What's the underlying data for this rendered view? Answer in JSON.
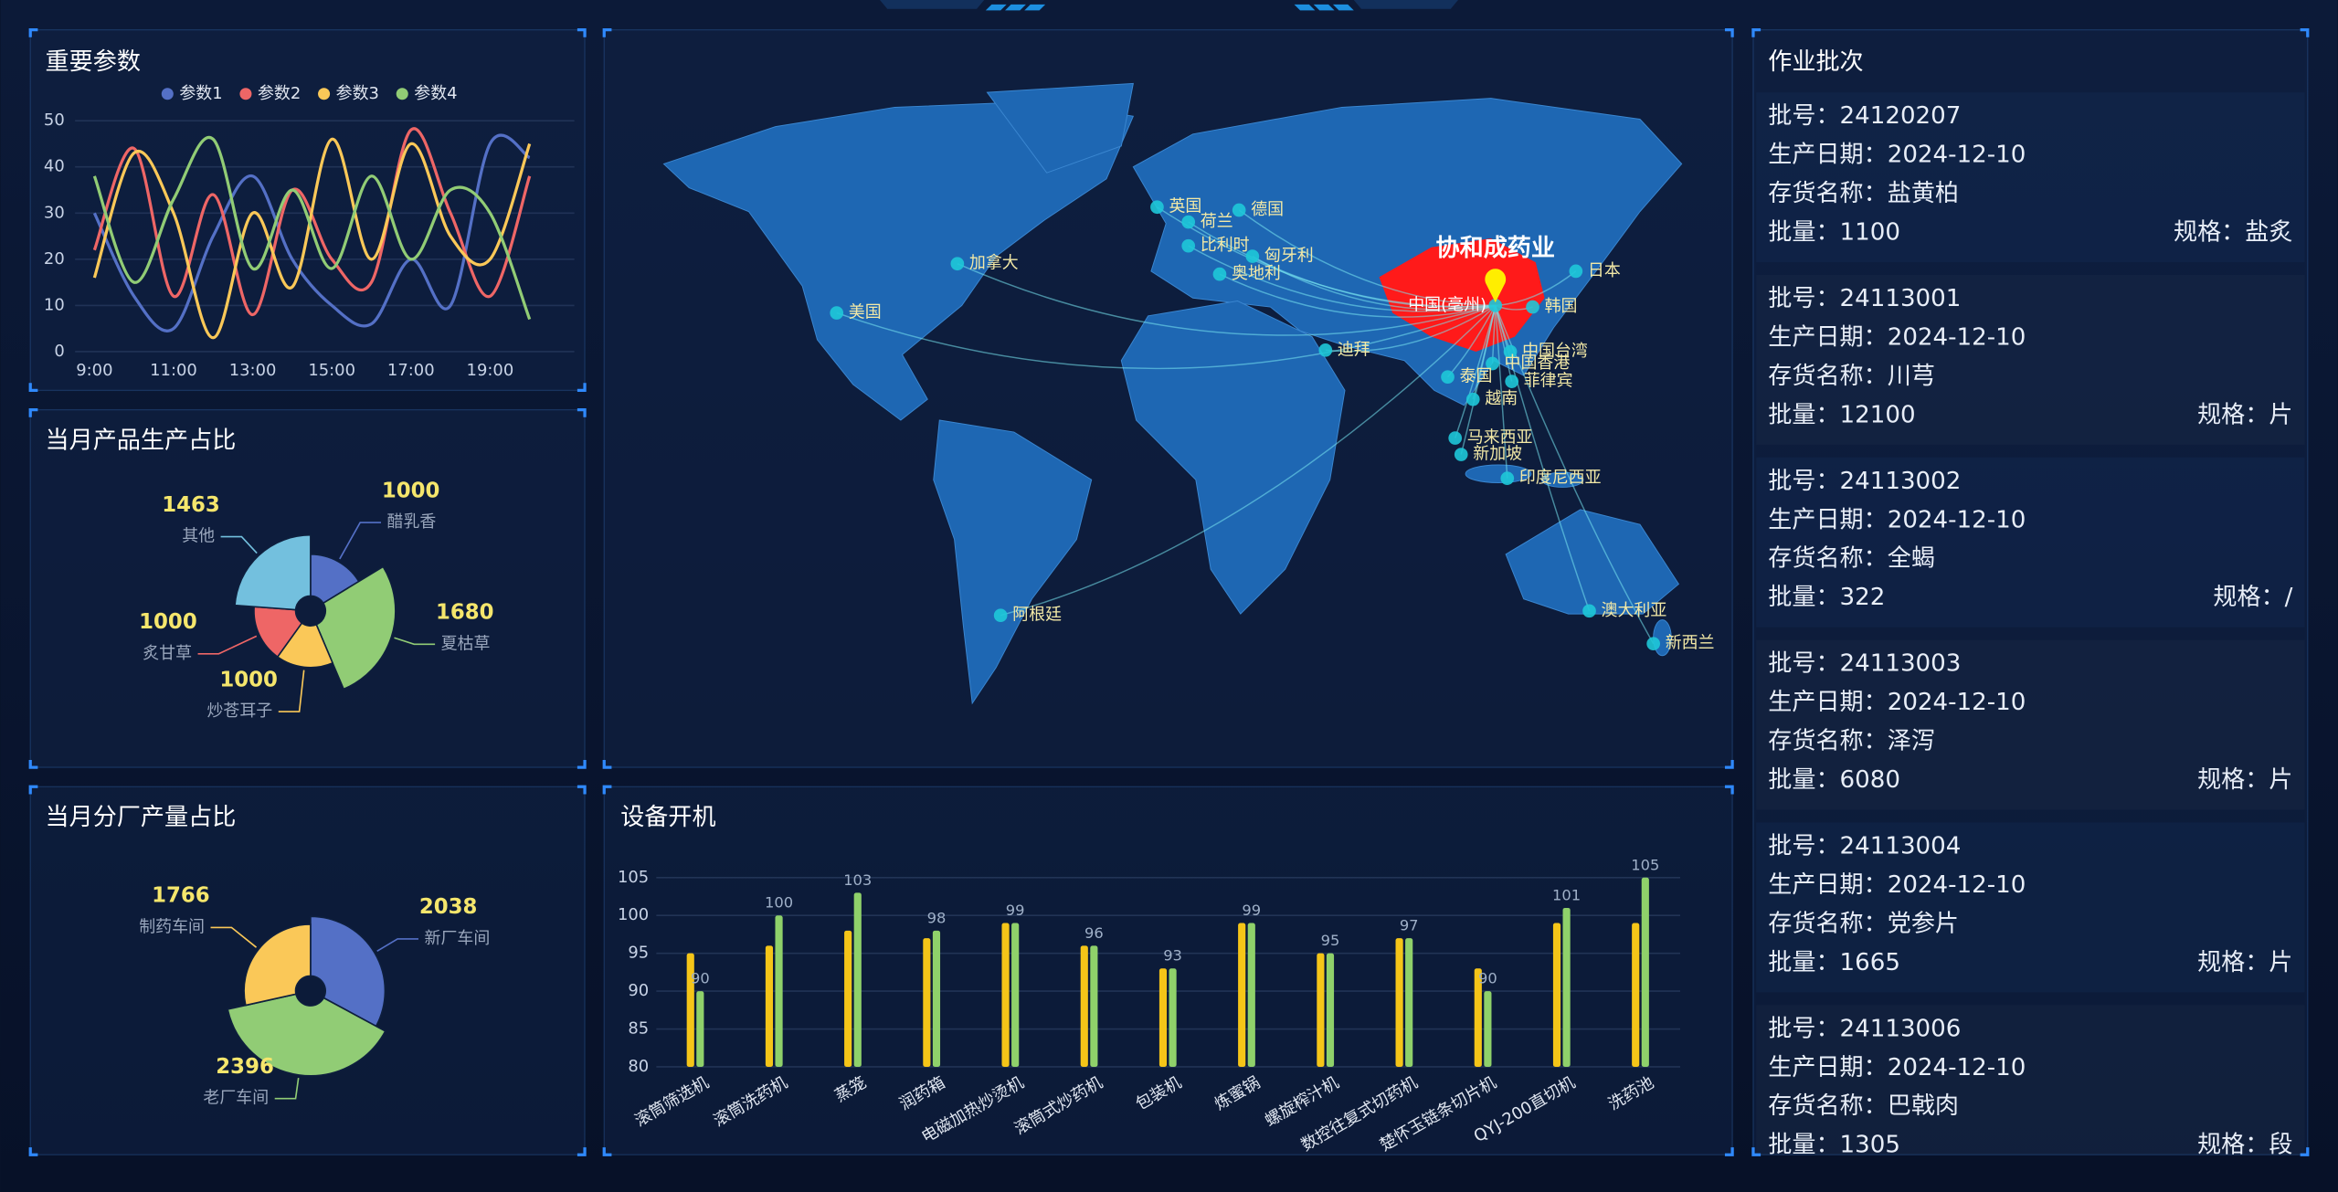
{
  "chart_data": [
    {
      "type": "line",
      "title": "重要参数",
      "categories": [
        "9:00",
        null,
        "11:00",
        null,
        "13:00",
        null,
        "15:00",
        null,
        "17:00",
        null,
        "19:00",
        null
      ],
      "ylim": [
        0,
        50
      ],
      "yticks": [
        0,
        10,
        20,
        30,
        40,
        50
      ],
      "legend": "top",
      "series": [
        {
          "name": "参数1",
          "color": "#5470c6",
          "values": [
            30,
            12,
            5,
            25,
            38,
            20,
            10,
            6,
            20,
            10,
            45,
            42
          ]
        },
        {
          "name": "参数2",
          "color": "#ee6666",
          "values": [
            22,
            44,
            12,
            34,
            8,
            35,
            20,
            15,
            48,
            30,
            12,
            38
          ]
        },
        {
          "name": "参数3",
          "color": "#fac858",
          "values": [
            16,
            43,
            30,
            3,
            30,
            14,
            46,
            20,
            45,
            25,
            20,
            45
          ]
        },
        {
          "name": "参数4",
          "color": "#91cc75",
          "values": [
            38,
            15,
            33,
            46,
            18,
            35,
            18,
            38,
            20,
            35,
            30,
            7
          ]
        }
      ]
    },
    {
      "type": "pie",
      "rose": true,
      "title": "当月产品生产占比",
      "categories": [
        "醋乳香",
        "夏枯草",
        "炒苍耳子",
        "炙甘草",
        "其他"
      ],
      "values": [
        1000,
        1680,
        1000,
        1000,
        1463
      ],
      "colors": [
        "#5470c6",
        "#91cc75",
        "#fac858",
        "#ee6666",
        "#73c0de"
      ]
    },
    {
      "type": "pie",
      "rose": true,
      "title": "当月分厂产量占比",
      "categories": [
        "新厂车间",
        "老厂车间",
        "制药车间"
      ],
      "values": [
        2038,
        2396,
        1766
      ],
      "colors": [
        "#5470c6",
        "#91cc75",
        "#fac858"
      ]
    },
    {
      "type": "bar",
      "title": "设备开机",
      "categories": [
        "滚筒筛选机",
        "滚筒洗药机",
        "蒸笼",
        "润药箱",
        "电磁加热炒烫机",
        "滚筒式炒药机",
        "包装机",
        "炼蜜锅",
        "螺旋榨汁机",
        "数控往复式切药机",
        "楚怀玉链条切片机",
        "QYJ-200直切机",
        "洗药池"
      ],
      "ylim": [
        80,
        105
      ],
      "yticks": [
        80,
        85,
        90,
        95,
        100,
        105
      ],
      "series": [
        {
          "color": "#f5c518",
          "values": [
            95,
            96,
            98,
            97,
            99,
            96,
            93,
            99,
            95,
            97,
            93,
            99,
            99
          ]
        },
        {
          "color": "#8fd16a",
          "values": [
            90,
            100,
            103,
            98,
            99,
            96,
            93,
            99,
            95,
            97,
            90,
            101,
            105
          ],
          "labels": true
        }
      ]
    }
  ],
  "map": {
    "highlight": "协和成药业",
    "origin": "中国(亳州)",
    "places": [
      "英国",
      "荷兰",
      "德国",
      "比利时",
      "匈牙利",
      "奥地利",
      "加拿大",
      "美国",
      "迪拜",
      "中国(亳州)",
      "日本",
      "韩国",
      "中国台湾",
      "中国香港",
      "泰国",
      "菲律宾",
      "越南",
      "马来西亚",
      "新加坡",
      "印度尼西亚",
      "阿根廷",
      "澳大利亚",
      "新西兰"
    ]
  },
  "batches": {
    "title": "作业批次",
    "fields": [
      "批号：",
      "生产日期：",
      "存货名称：",
      "批量：",
      "规格："
    ],
    "items": [
      [
        "24120207",
        "2024-12-10",
        "盐黄柏",
        "1100",
        "盐炙"
      ],
      [
        "24113001",
        "2024-12-10",
        "川芎",
        "12100",
        "片"
      ],
      [
        "24113002",
        "2024-12-10",
        "全蝎",
        "322",
        "/"
      ],
      [
        "24113003",
        "2024-12-10",
        "泽泻",
        "6080",
        "片"
      ],
      [
        "24113004",
        "2024-12-10",
        "党参片",
        "1665",
        "片"
      ],
      [
        "24113006",
        "2024-12-10",
        "巴戟肉",
        "1305",
        "段"
      ]
    ]
  }
}
